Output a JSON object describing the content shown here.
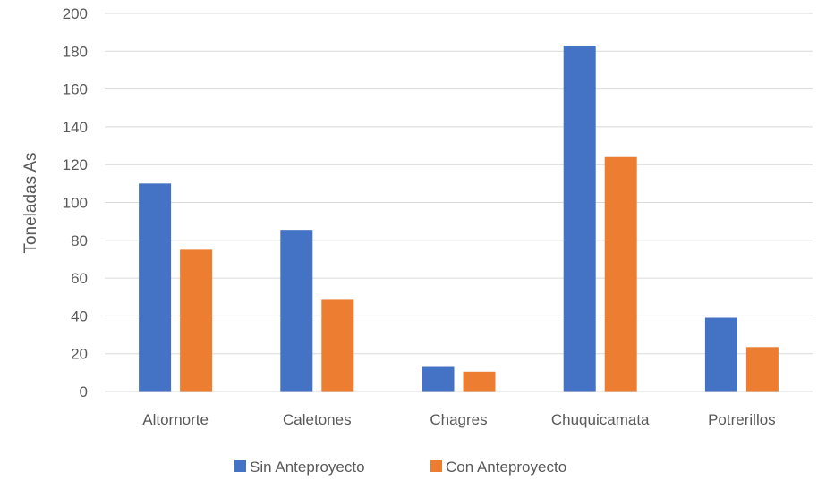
{
  "chart_data": {
    "type": "bar",
    "title": "",
    "xlabel": "",
    "ylabel": "Toneladas As",
    "ylim": [
      0,
      200
    ],
    "yticks": [
      0,
      20,
      40,
      60,
      80,
      100,
      120,
      140,
      160,
      180,
      200
    ],
    "categories": [
      "Altornorte",
      "Caletones",
      "Chagres",
      "Chuquicamata",
      "Potrerillos"
    ],
    "series": [
      {
        "name": "Sin Anteproyecto",
        "color": "#4472C4",
        "values": [
          110,
          85.5,
          13,
          183,
          39
        ]
      },
      {
        "name": "Con Anteproyecto",
        "color": "#ED7D31",
        "values": [
          75,
          48.5,
          10.5,
          124,
          23.5
        ]
      }
    ],
    "grid": true,
    "legend_position": "bottom"
  }
}
